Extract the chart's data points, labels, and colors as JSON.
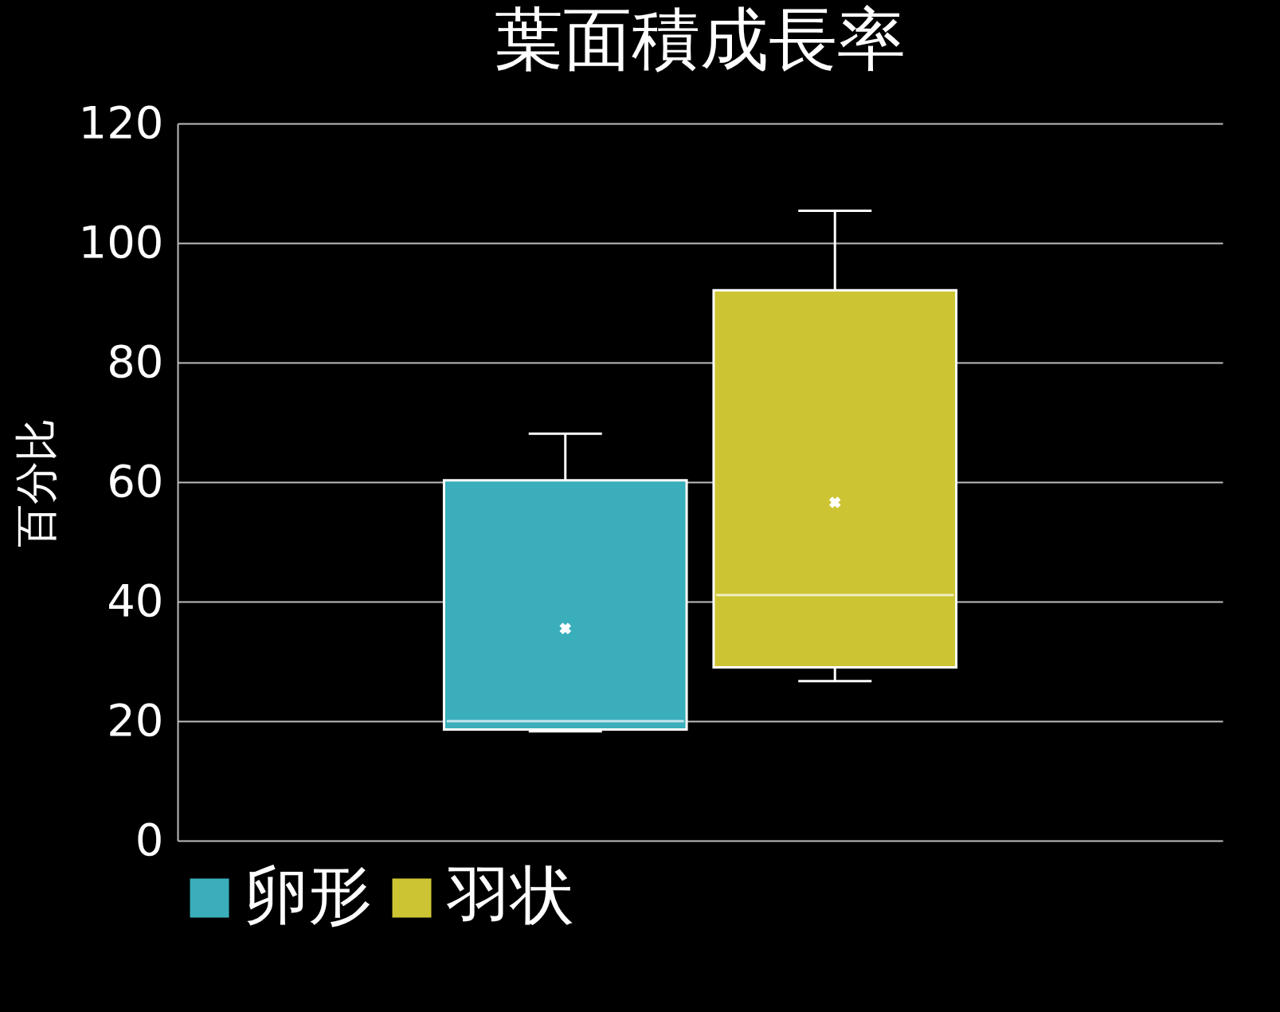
{
  "chart_data": {
    "type": "box",
    "title": "葉面積成長率",
    "ylabel": "百分比",
    "categories": [
      null
    ],
    "series": [
      {
        "name": "卵形",
        "color": "#3aaebb",
        "boxes": [
          {
            "low": 18.3,
            "q1": 18.6,
            "median": 20,
            "q3": 60.3,
            "high": 68.1,
            "mean": 35.5
          }
        ]
      },
      {
        "name": "羽状",
        "color": "#cdc433",
        "boxes": [
          {
            "low": 26.7,
            "q1": 29,
            "median": 41.1,
            "q3": 92.1,
            "high": 105.4,
            "mean": 56.6
          }
        ]
      }
    ],
    "ylim": [
      0,
      120
    ],
    "yticks": [
      0,
      20,
      40,
      60,
      80,
      100,
      120
    ],
    "grid": "y",
    "legend": "bottom"
  }
}
